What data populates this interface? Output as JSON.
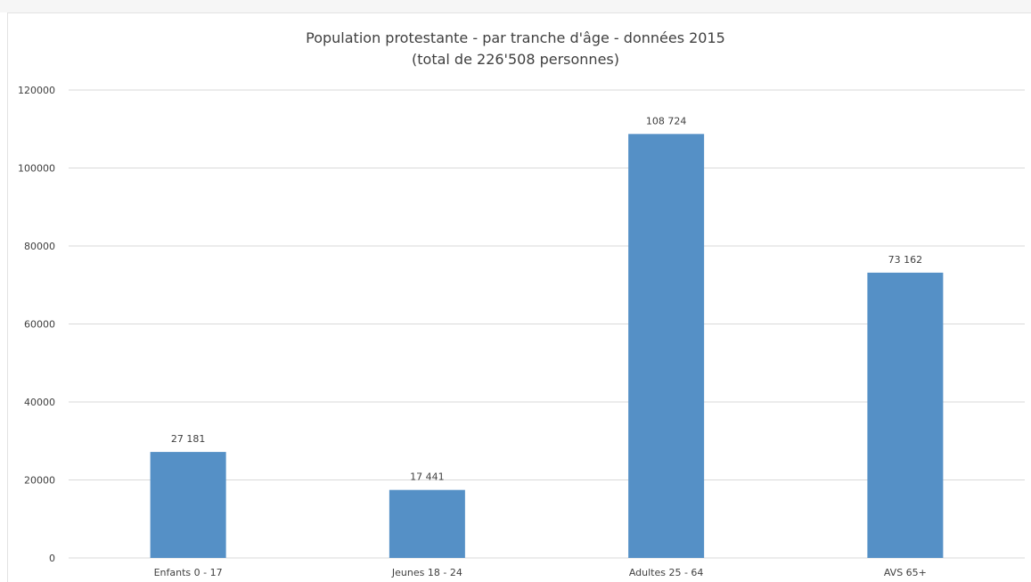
{
  "chart_data": {
    "type": "bar",
    "title": "Population protestante - par tranche d'âge - données 2015",
    "subtitle": "(total de 226'508 personnes)",
    "categories": [
      "Enfants 0 - 17",
      "Jeunes 18 - 24",
      "Adultes 25 - 64",
      "AVS 65+"
    ],
    "values": [
      27181,
      17441,
      108724,
      73162
    ],
    "data_labels": [
      "27 181",
      "17 441",
      "108 724",
      "73 162"
    ],
    "y_ticks": [
      "0",
      "20000",
      "40000",
      "60000",
      "80000",
      "100000",
      "120000"
    ],
    "ylim": [
      0,
      120000
    ],
    "grid": true,
    "bar_color": "#5590c6",
    "grid_color": "#d9d9d9"
  }
}
